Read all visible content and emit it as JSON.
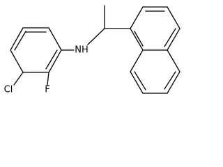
{
  "atoms": [
    {
      "label": "Cl"
    },
    {
      "label": "F"
    },
    {
      "label": "NH"
    }
  ]
}
